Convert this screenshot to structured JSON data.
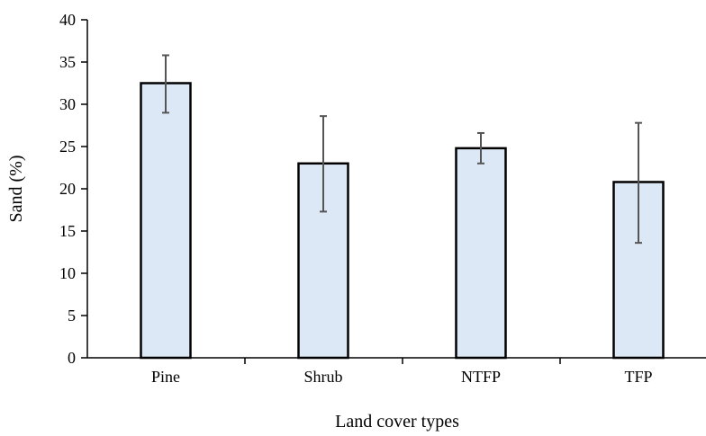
{
  "chart_data": {
    "type": "bar",
    "categories": [
      "Pine",
      "Shrub",
      "NTFP",
      "TFP"
    ],
    "series": [
      {
        "values": [
          32.5,
          23.0,
          24.8,
          20.8
        ],
        "error_low": [
          29.0,
          17.3,
          23.0,
          13.6
        ],
        "error_high": [
          35.8,
          28.6,
          26.6,
          27.8
        ]
      }
    ],
    "xlabel": "Land cover types",
    "ylabel": "Sand (%)",
    "ylim": [
      0,
      40
    ],
    "yticks": [
      0,
      5,
      10,
      15,
      20,
      25,
      30,
      35,
      40
    ],
    "grid": false,
    "legend": "none",
    "colors": {
      "bar_fill": "#dde8f6",
      "bar_stroke": "#000000",
      "error_bar": "#555555",
      "axis": "#000000"
    }
  }
}
